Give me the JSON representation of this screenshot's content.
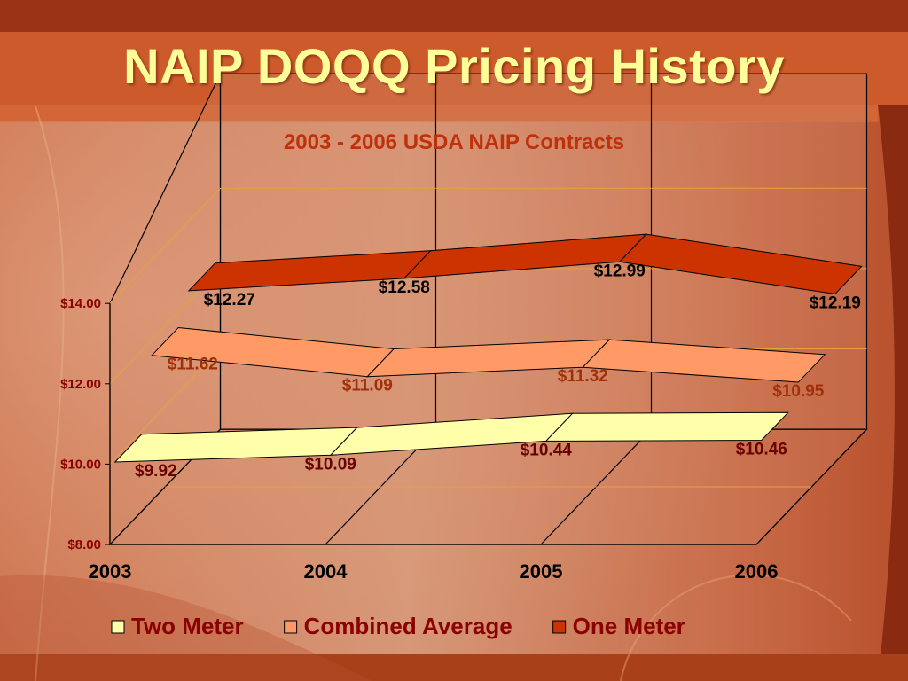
{
  "slide": {
    "title": "NAIP DOQQ Pricing History"
  },
  "colors": {
    "title_text": "#ffff99",
    "chart_title": "#c0300a",
    "axis_text": "#8b0000",
    "two_meter": "#ffffaa",
    "combined_average": "#ff9966",
    "one_meter": "#cc3300"
  },
  "chart_data": {
    "type": "area",
    "title": "2003 - 2006 USDA NAIP Contracts",
    "categories": [
      "2003",
      "2004",
      "2005",
      "2006"
    ],
    "ylim": [
      8,
      14
    ],
    "y_ticks": [
      "$8.00",
      "$10.00",
      "$12.00",
      "$14.00"
    ],
    "grid": true,
    "three_d": true,
    "legend_position": "bottom",
    "series": [
      {
        "name": "Two Meter",
        "values": [
          9.92,
          10.09,
          10.44,
          10.46
        ],
        "labels": [
          "$9.92",
          "$10.09",
          "$10.44",
          "$10.46"
        ]
      },
      {
        "name": "Combined Average",
        "values": [
          11.62,
          11.09,
          11.32,
          10.95
        ],
        "labels": [
          "$11.62",
          "$11.09",
          "$11.32",
          "$10.95"
        ]
      },
      {
        "name": "One Meter",
        "values": [
          12.27,
          12.58,
          12.99,
          12.19
        ],
        "labels": [
          "$12.27",
          "$12.58",
          "$12.99",
          "$12.19"
        ]
      }
    ]
  }
}
